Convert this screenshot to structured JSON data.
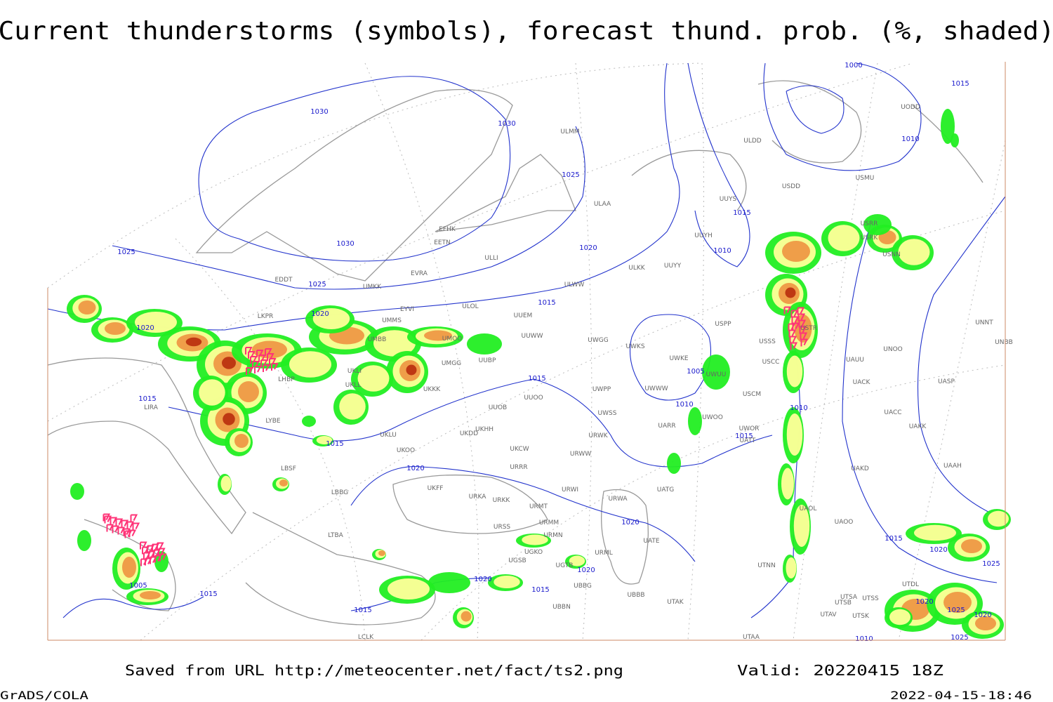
{
  "header": {
    "title": "Current thunderstorms (symbols), forecast thund. prob. (%, shaded)"
  },
  "isobar_labels": [
    "1030",
    "1030",
    "1025",
    "1030",
    "1025",
    "1025",
    "1020",
    "1015",
    "1010",
    "1015",
    "1020",
    "1020",
    "1015",
    "1015",
    "1015",
    "1005",
    "1010",
    "1010",
    "1015",
    "1020",
    "1020",
    "1015",
    "1020",
    "1025",
    "1020",
    "1020",
    "1015",
    "1005",
    "1015",
    "1015",
    "1000",
    "1015",
    "1010",
    "1020",
    "1025",
    "1020",
    "1010",
    "1025"
  ],
  "stations": [
    "ULMM",
    "ULAA",
    "UUYS",
    "UUYH",
    "ULKK",
    "UUYY",
    "ULWW",
    "ULLI",
    "EETN",
    "EFHK",
    "EVRA",
    "ULOL",
    "UUEM",
    "UUWW",
    "UMMS",
    "UMBB",
    "UMOO",
    "UUBP",
    "UMGG",
    "UKKK",
    "UUOO",
    "UUOB",
    "UKHH",
    "UKDD",
    "UKOO",
    "UKCW",
    "URRR",
    "URWI",
    "URKA",
    "URKK",
    "URMT",
    "URMM",
    "URMN",
    "URSS",
    "UGKO",
    "UGSB",
    "UGTB",
    "UBBG",
    "UBBN",
    "UBBB",
    "URML",
    "UATG",
    "URWA",
    "UATE",
    "UTAK",
    "UWGG",
    "UWKS",
    "UWPP",
    "UWSS",
    "UWWW",
    "URWK",
    "URWW",
    "UARR",
    "UATT",
    "UWOO",
    "UWOR",
    "USCM",
    "USCC",
    "USSS",
    "UWUU",
    "UWKE",
    "USPP",
    "LYBE",
    "LBSF",
    "LBBG",
    "LTBA",
    "LKPR",
    "EDDT",
    "LHBP",
    "EYVI",
    "UKLL",
    "UKLI",
    "UMKK",
    "LIRA",
    "UKLU",
    "UKFF",
    "UTNN",
    "UTSA",
    "UTSB",
    "UTAV",
    "UTAA",
    "LCLK",
    "UTSS",
    "UTSK",
    "UTDL",
    "UAOL",
    "UAOO",
    "UAKD",
    "UAAH",
    "UACC",
    "UAKK",
    "UACK",
    "UASP",
    "UAUU",
    "UNOO",
    "UNBB",
    "UNNT",
    "USDD",
    "USMU",
    "ULDD",
    "UODD",
    "USRK",
    "USRR",
    "USNN",
    "USTR"
  ],
  "footer": {
    "source": "Saved from URL http://meteocenter.net/fact/ts2.png",
    "valid": "Valid: 20220415 18Z",
    "software": "GrADS/COLA",
    "timestamp": "2022-04-15-18:46"
  }
}
